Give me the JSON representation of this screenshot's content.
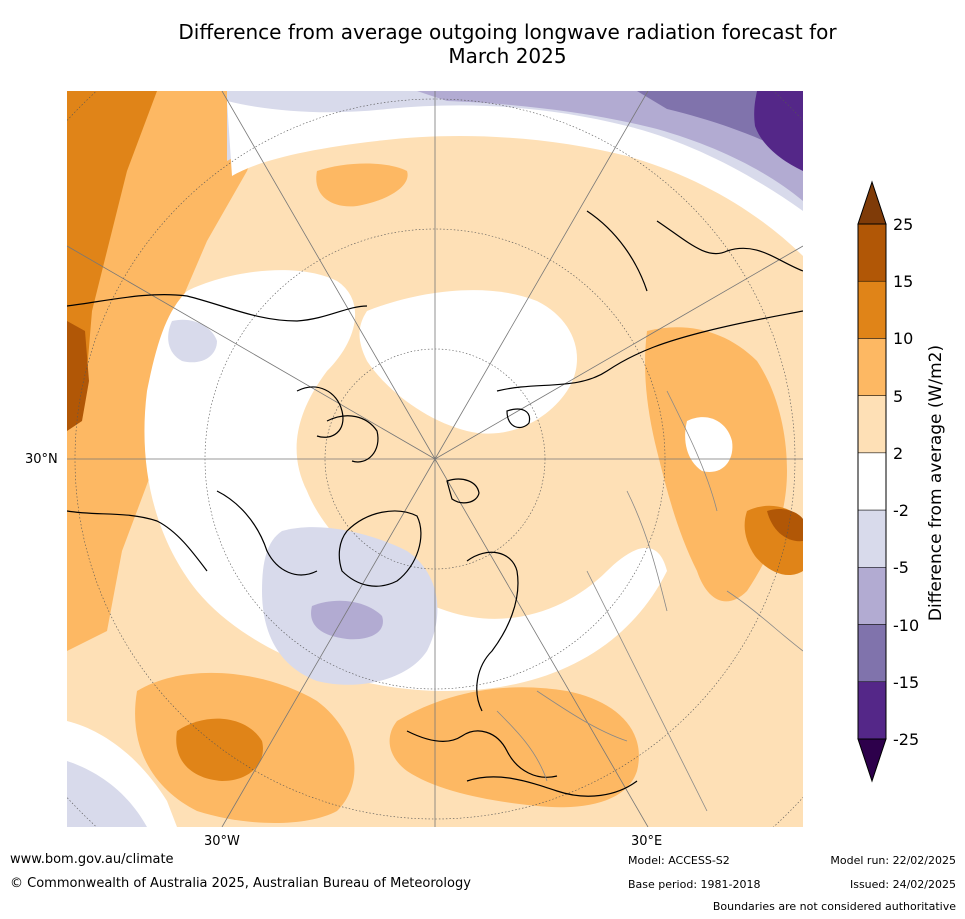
{
  "title_line1": "Difference from average outgoing longwave radiation forecast for",
  "title_line2": "March 2025",
  "map": {
    "lat_label": "30°N",
    "lon_labels": [
      "30°W",
      "30°E"
    ],
    "projection": "polar stereographic (north)"
  },
  "colorbar": {
    "title": "Difference from average (W/m2)",
    "ticks": [
      "25",
      "15",
      "10",
      "5",
      "2",
      "-2",
      "-5",
      "-10",
      "-15",
      "-25"
    ],
    "colors_top_to_bottom": [
      "#b15706",
      "#e08418",
      "#fdb863",
      "#fee0b6",
      "#ffffff",
      "#d8daeb",
      "#b2abd2",
      "#8073ac",
      "#542788"
    ],
    "over_color": "#7f3b08",
    "under_color": "#2d004b"
  },
  "footer": {
    "website": "www.bom.gov.au/climate",
    "copyright": "© Commonwealth of Australia 2025, Australian Bureau of Meteorology",
    "model": "Model: ACCESS-S2",
    "base_period": "Base period: 1981-2018",
    "model_run": "Model run: 22/02/2025",
    "issued": "Issued: 24/02/2025",
    "boundaries": "Boundaries are not considered authoritative"
  }
}
